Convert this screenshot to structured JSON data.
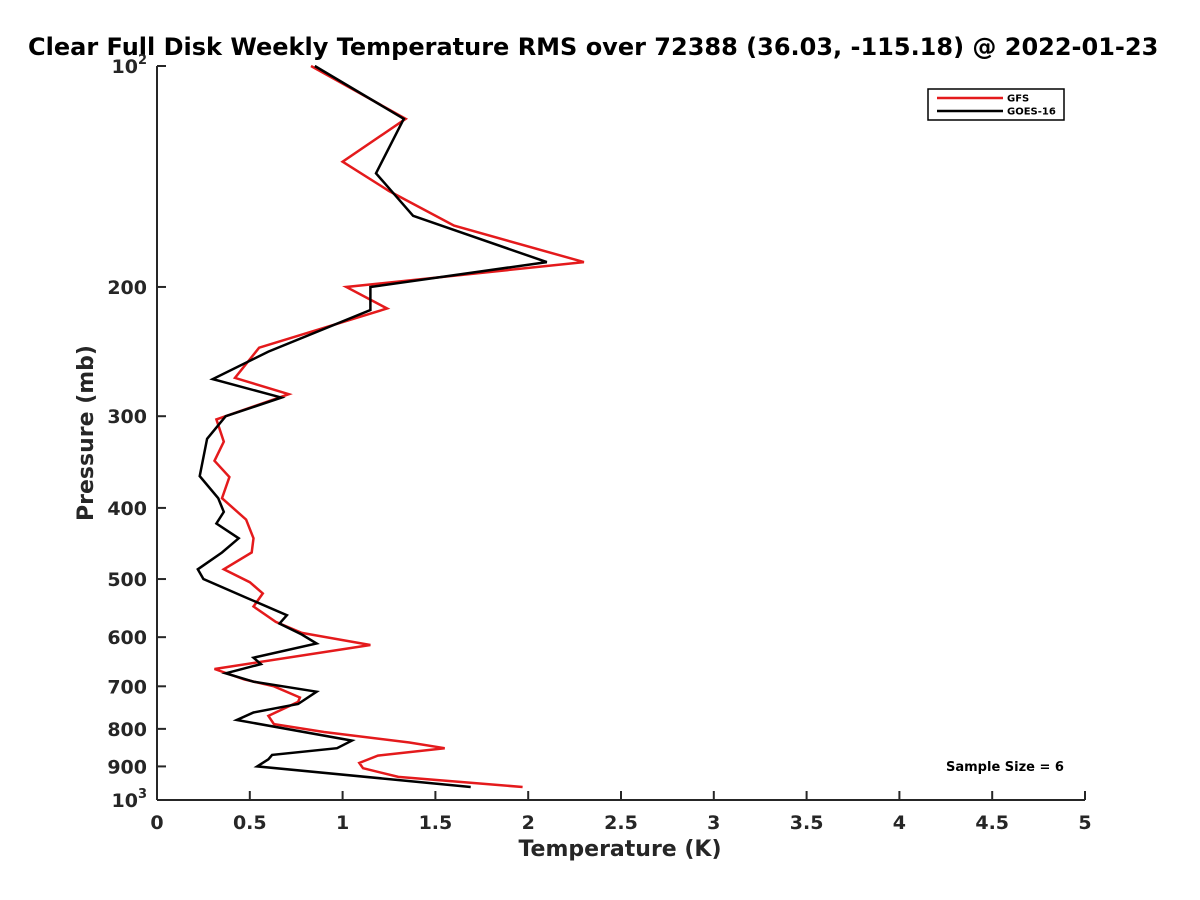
{
  "chart_data": {
    "type": "line",
    "title": "Clear Full Disk Weekly Temperature RMS over 72388 (36.03, -115.18) @ 2022-01-23",
    "xlabel": "Temperature (K)",
    "ylabel": "Pressure (mb)",
    "xlim": [
      0,
      5
    ],
    "ylim": [
      100,
      1000
    ],
    "y_scale": "log",
    "y_reversed": true,
    "grid": false,
    "legend_position": "top-right",
    "x_ticks": [
      "0",
      "0.5",
      "1",
      "1.5",
      "2",
      "2.5",
      "3",
      "3.5",
      "4",
      "4.5",
      "5"
    ],
    "y_ticks": [
      {
        "value": 100,
        "base": "10",
        "exp": "2"
      },
      {
        "value": 200,
        "label": "200"
      },
      {
        "value": 300,
        "label": "300"
      },
      {
        "value": 400,
        "label": "400"
      },
      {
        "value": 500,
        "label": "500"
      },
      {
        "value": 600,
        "label": "600"
      },
      {
        "value": 700,
        "label": "700"
      },
      {
        "value": 800,
        "label": "800"
      },
      {
        "value": 900,
        "label": "900"
      },
      {
        "value": 1000,
        "base": "10",
        "exp": "3"
      }
    ],
    "annotation": "Sample Size = 6",
    "series": [
      {
        "name": "GFS",
        "color": "#e41a1c",
        "points": [
          [
            0.83,
            100
          ],
          [
            1.34,
            118
          ],
          [
            1.0,
            135
          ],
          [
            1.25,
            148
          ],
          [
            1.6,
            165
          ],
          [
            2.3,
            185
          ],
          [
            1.02,
            200
          ],
          [
            1.24,
            214
          ],
          [
            0.55,
            242
          ],
          [
            0.42,
            266
          ],
          [
            0.71,
            280
          ],
          [
            0.32,
            303
          ],
          [
            0.36,
            325
          ],
          [
            0.31,
            345
          ],
          [
            0.39,
            363
          ],
          [
            0.35,
            388
          ],
          [
            0.48,
            415
          ],
          [
            0.52,
            440
          ],
          [
            0.51,
            460
          ],
          [
            0.36,
            485
          ],
          [
            0.5,
            505
          ],
          [
            0.57,
            523
          ],
          [
            0.52,
            545
          ],
          [
            0.64,
            572
          ],
          [
            0.78,
            592
          ],
          [
            1.15,
            615
          ],
          [
            0.31,
            663
          ],
          [
            0.47,
            685
          ],
          [
            0.63,
            700
          ],
          [
            0.77,
            725
          ],
          [
            0.76,
            735
          ],
          [
            0.6,
            768
          ],
          [
            0.63,
            788
          ],
          [
            0.9,
            808
          ],
          [
            1.36,
            835
          ],
          [
            1.55,
            850
          ],
          [
            1.19,
            870
          ],
          [
            1.09,
            890
          ],
          [
            1.11,
            905
          ],
          [
            1.3,
            930
          ],
          [
            1.97,
            960
          ]
        ]
      },
      {
        "name": "GOES-16",
        "color": "#000000",
        "points": [
          [
            0.85,
            100
          ],
          [
            1.33,
            118
          ],
          [
            1.18,
            140
          ],
          [
            1.38,
            160
          ],
          [
            2.1,
            185
          ],
          [
            1.15,
            200
          ],
          [
            1.15,
            215
          ],
          [
            0.6,
            245
          ],
          [
            0.3,
            267
          ],
          [
            0.67,
            283
          ],
          [
            0.37,
            300
          ],
          [
            0.27,
            322
          ],
          [
            0.23,
            362
          ],
          [
            0.33,
            388
          ],
          [
            0.36,
            405
          ],
          [
            0.32,
            420
          ],
          [
            0.44,
            440
          ],
          [
            0.35,
            460
          ],
          [
            0.22,
            485
          ],
          [
            0.25,
            500
          ],
          [
            0.48,
            530
          ],
          [
            0.7,
            560
          ],
          [
            0.66,
            575
          ],
          [
            0.78,
            595
          ],
          [
            0.86,
            612
          ],
          [
            0.52,
            640
          ],
          [
            0.56,
            653
          ],
          [
            0.37,
            672
          ],
          [
            0.52,
            690
          ],
          [
            0.86,
            712
          ],
          [
            0.76,
            740
          ],
          [
            0.52,
            760
          ],
          [
            0.43,
            778
          ],
          [
            1.05,
            830
          ],
          [
            0.97,
            850
          ],
          [
            0.62,
            868
          ],
          [
            0.6,
            880
          ],
          [
            0.54,
            900
          ],
          [
            1.69,
            960
          ]
        ]
      }
    ]
  }
}
